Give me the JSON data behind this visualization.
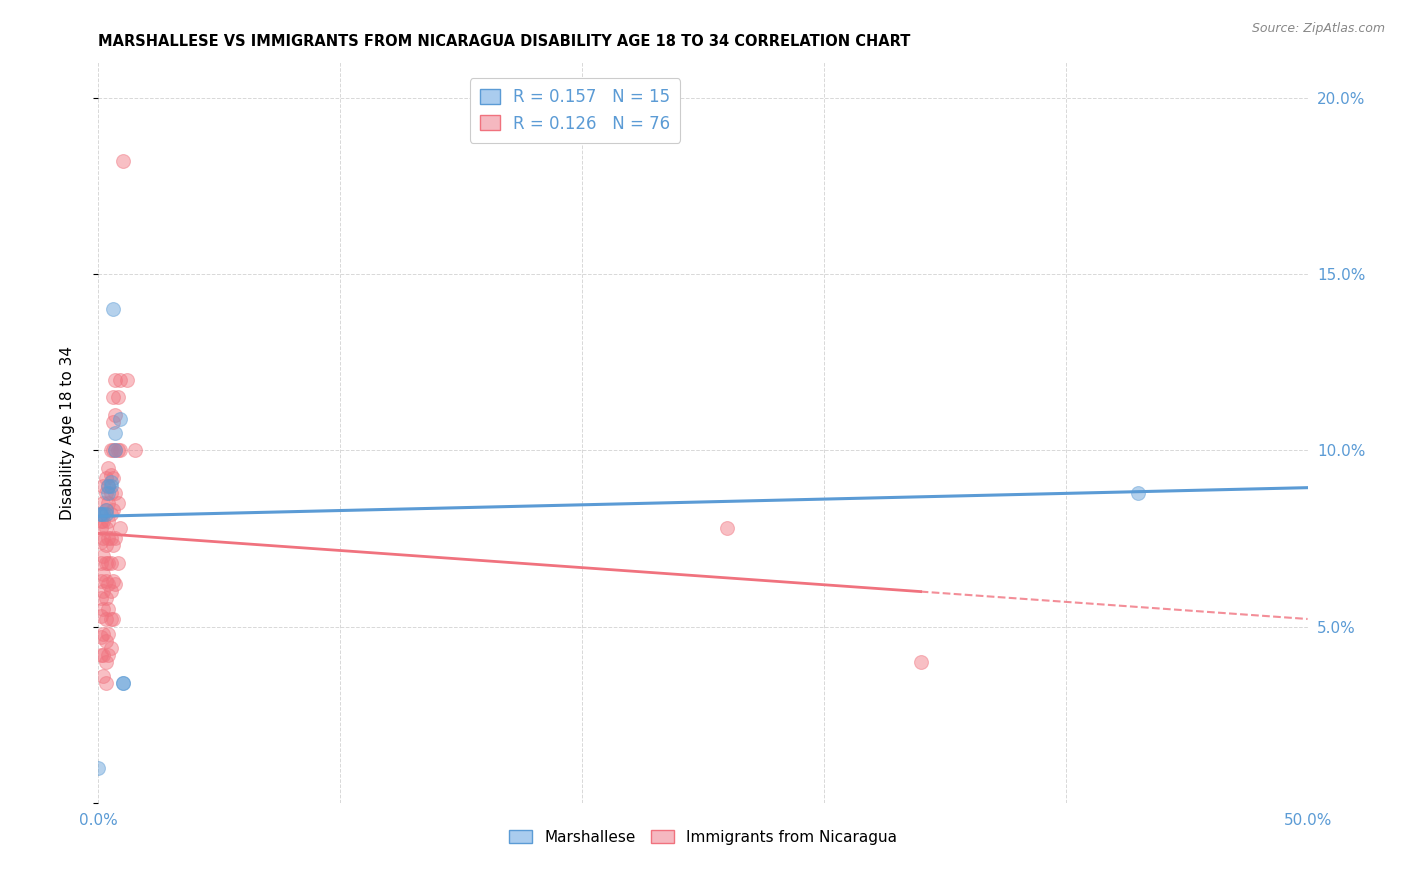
{
  "title": "MARSHALLESE VS IMMIGRANTS FROM NICARAGUA DISABILITY AGE 18 TO 34 CORRELATION CHART",
  "source": "Source: ZipAtlas.com",
  "ylabel": "Disability Age 18 to 34",
  "xlim": [
    0.0,
    0.5
  ],
  "ylim": [
    0.0,
    0.21
  ],
  "xticks": [
    0.0,
    0.1,
    0.2,
    0.3,
    0.4,
    0.5
  ],
  "yticks": [
    0.0,
    0.05,
    0.1,
    0.15,
    0.2
  ],
  "xtick_labels": [
    "0.0%",
    "",
    "",
    "",
    "",
    "50.0%"
  ],
  "ytick_labels": [
    "",
    "5.0%",
    "10.0%",
    "15.0%",
    "20.0%"
  ],
  "background_color": "#ffffff",
  "grid_color": "#d8d8d8",
  "blue_color": "#5b9bd5",
  "pink_color": "#f0727e",
  "axis_label_color": "#5b9bd5",
  "marshallese_points": [
    [
      0.0005,
      0.082
    ],
    [
      0.001,
      0.082
    ],
    [
      0.002,
      0.082
    ],
    [
      0.003,
      0.082
    ],
    [
      0.003,
      0.083
    ],
    [
      0.004,
      0.088
    ],
    [
      0.004,
      0.09
    ],
    [
      0.005,
      0.09
    ],
    [
      0.005,
      0.091
    ],
    [
      0.006,
      0.14
    ],
    [
      0.007,
      0.105
    ],
    [
      0.007,
      0.1
    ],
    [
      0.009,
      0.109
    ],
    [
      0.01,
      0.034
    ],
    [
      0.01,
      0.034
    ],
    [
      0.43,
      0.088
    ],
    [
      0.0,
      0.01
    ]
  ],
  "nicaragua_points": [
    [
      0.001,
      0.082
    ],
    [
      0.001,
      0.08
    ],
    [
      0.001,
      0.078
    ],
    [
      0.001,
      0.074
    ],
    [
      0.001,
      0.068
    ],
    [
      0.001,
      0.063
    ],
    [
      0.001,
      0.058
    ],
    [
      0.001,
      0.053
    ],
    [
      0.001,
      0.047
    ],
    [
      0.001,
      0.042
    ],
    [
      0.002,
      0.09
    ],
    [
      0.002,
      0.085
    ],
    [
      0.002,
      0.08
    ],
    [
      0.002,
      0.075
    ],
    [
      0.002,
      0.07
    ],
    [
      0.002,
      0.065
    ],
    [
      0.002,
      0.06
    ],
    [
      0.002,
      0.055
    ],
    [
      0.002,
      0.048
    ],
    [
      0.002,
      0.042
    ],
    [
      0.002,
      0.036
    ],
    [
      0.003,
      0.092
    ],
    [
      0.003,
      0.088
    ],
    [
      0.003,
      0.083
    ],
    [
      0.003,
      0.078
    ],
    [
      0.003,
      0.073
    ],
    [
      0.003,
      0.068
    ],
    [
      0.003,
      0.063
    ],
    [
      0.003,
      0.058
    ],
    [
      0.003,
      0.052
    ],
    [
      0.003,
      0.046
    ],
    [
      0.003,
      0.04
    ],
    [
      0.003,
      0.034
    ],
    [
      0.004,
      0.095
    ],
    [
      0.004,
      0.09
    ],
    [
      0.004,
      0.085
    ],
    [
      0.004,
      0.08
    ],
    [
      0.004,
      0.075
    ],
    [
      0.004,
      0.068
    ],
    [
      0.004,
      0.062
    ],
    [
      0.004,
      0.055
    ],
    [
      0.004,
      0.048
    ],
    [
      0.004,
      0.042
    ],
    [
      0.005,
      0.1
    ],
    [
      0.005,
      0.093
    ],
    [
      0.005,
      0.088
    ],
    [
      0.005,
      0.082
    ],
    [
      0.005,
      0.075
    ],
    [
      0.005,
      0.068
    ],
    [
      0.005,
      0.06
    ],
    [
      0.005,
      0.052
    ],
    [
      0.005,
      0.044
    ],
    [
      0.006,
      0.115
    ],
    [
      0.006,
      0.108
    ],
    [
      0.006,
      0.1
    ],
    [
      0.006,
      0.092
    ],
    [
      0.006,
      0.083
    ],
    [
      0.006,
      0.073
    ],
    [
      0.006,
      0.063
    ],
    [
      0.006,
      0.052
    ],
    [
      0.007,
      0.12
    ],
    [
      0.007,
      0.11
    ],
    [
      0.007,
      0.1
    ],
    [
      0.007,
      0.088
    ],
    [
      0.007,
      0.075
    ],
    [
      0.007,
      0.062
    ],
    [
      0.008,
      0.115
    ],
    [
      0.008,
      0.1
    ],
    [
      0.008,
      0.085
    ],
    [
      0.008,
      0.068
    ],
    [
      0.009,
      0.12
    ],
    [
      0.009,
      0.1
    ],
    [
      0.009,
      0.078
    ],
    [
      0.01,
      0.182
    ],
    [
      0.012,
      0.12
    ],
    [
      0.015,
      0.1
    ],
    [
      0.26,
      0.078
    ],
    [
      0.34,
      0.04
    ]
  ]
}
